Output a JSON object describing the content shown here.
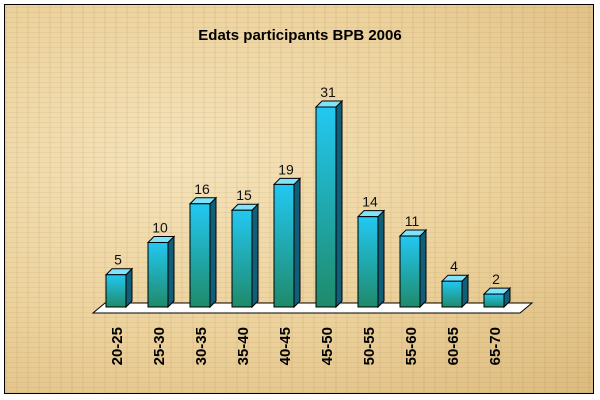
{
  "chart_data": {
    "type": "bar",
    "title": "Edats participants BPB 2006",
    "categories": [
      "20-25",
      "25-30",
      "30-35",
      "35-40",
      "40-45",
      "45-50",
      "50-55",
      "55-60",
      "60-65",
      "65-70"
    ],
    "values": [
      5,
      10,
      16,
      15,
      19,
      31,
      14,
      11,
      4,
      2
    ],
    "data_labels": [
      "5",
      "10",
      "16",
      "15",
      "19",
      "31",
      "14",
      "11",
      "4",
      "2"
    ],
    "xlabel": "",
    "ylabel": "",
    "ylim": [
      0,
      31
    ],
    "grid": false,
    "legend": "none",
    "style": "3d-columns",
    "colors": {
      "bar_top": "#22c8f2",
      "bar_bottom": "#1f8a6a",
      "bar_side": "#0f5f7a",
      "bar_cap": "#7fe3fa",
      "floor": "#ffffff"
    }
  }
}
